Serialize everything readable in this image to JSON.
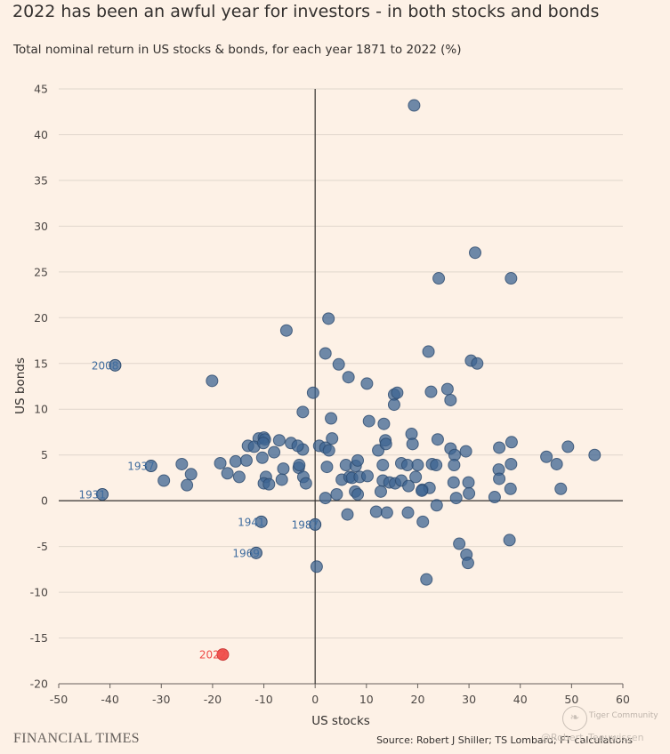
{
  "title": "2022 has been an awful year for investors - in both stocks and bonds",
  "subtitle": "Total nominal return in US stocks & bonds, for each year 1871 to 2022 (%)",
  "brand": "FINANCIAL TIMES",
  "source": "Source: Robert J Shiller; TS Lombard; FT calculations",
  "watermark": {
    "name": "Tiger Community",
    "sub": "@Robert_Teeuwissen"
  },
  "colors": {
    "point": "#3d6491",
    "highlight": "#ef4d4a",
    "label": "#3f6c9e",
    "background": "#fdf1e6",
    "grid": "#e0d6cc"
  },
  "chart_data": {
    "type": "scatter",
    "title": "2022 has been an awful year for investors - in both stocks and bonds",
    "subtitle": "Total nominal return in US stocks & bonds, for each year 1871 to 2022 (%)",
    "xlabel": "US stocks",
    "ylabel": "US bonds",
    "xlim": [
      -50,
      60
    ],
    "ylim": [
      -20,
      45
    ],
    "xticks": [
      -50,
      -40,
      -30,
      -20,
      -10,
      0,
      10,
      20,
      30,
      40,
      50,
      60
    ],
    "yticks": [
      -20,
      -15,
      -10,
      -5,
      0,
      5,
      10,
      15,
      20,
      25,
      30,
      35,
      40,
      45
    ],
    "grid": "horizontal",
    "labeled_points": [
      {
        "label": "2008",
        "x": -39,
        "y": 14.8
      },
      {
        "label": "1937",
        "x": -32,
        "y": 3.8
      },
      {
        "label": "1931",
        "x": -41.5,
        "y": 0.7
      },
      {
        "label": "1941",
        "x": -10.5,
        "y": -2.3
      },
      {
        "label": "1987",
        "x": 0,
        "y": -2.6
      },
      {
        "label": "1969",
        "x": -11.5,
        "y": -5.7
      },
      {
        "label": "2022",
        "x": -18,
        "y": -16.8,
        "highlight": true
      }
    ],
    "points": [
      [
        19.3,
        43.2
      ],
      [
        31.2,
        27.1
      ],
      [
        24.1,
        24.3
      ],
      [
        38.2,
        24.3
      ],
      [
        2.6,
        19.9
      ],
      [
        -5.6,
        18.6
      ],
      [
        22.1,
        16.3
      ],
      [
        2.0,
        16.1
      ],
      [
        4.6,
        14.9
      ],
      [
        30.4,
        15.3
      ],
      [
        31.6,
        15.0
      ],
      [
        6.5,
        13.5
      ],
      [
        -20.1,
        13.1
      ],
      [
        10.1,
        12.8
      ],
      [
        25.8,
        12.2
      ],
      [
        22.6,
        11.9
      ],
      [
        -0.4,
        11.8
      ],
      [
        15.4,
        11.6
      ],
      [
        16.0,
        11.8
      ],
      [
        26.4,
        11.0
      ],
      [
        15.4,
        10.5
      ],
      [
        -2.4,
        9.7
      ],
      [
        3.1,
        9.0
      ],
      [
        10.5,
        8.7
      ],
      [
        13.4,
        8.4
      ],
      [
        18.8,
        7.3
      ],
      [
        -11.0,
        6.8
      ],
      [
        -10.0,
        6.9
      ],
      [
        -9.8,
        6.7
      ],
      [
        -7.0,
        6.6
      ],
      [
        -4.7,
        6.3
      ],
      [
        0.8,
        6.0
      ],
      [
        3.3,
        6.8
      ],
      [
        13.7,
        6.6
      ],
      [
        19.0,
        6.2
      ],
      [
        23.9,
        6.7
      ],
      [
        38.3,
        6.4
      ],
      [
        -13.1,
        6.0
      ],
      [
        -11.9,
        5.9
      ],
      [
        -10.1,
        6.3
      ],
      [
        -8.0,
        5.3
      ],
      [
        -2.4,
        5.6
      ],
      [
        -3.4,
        6.0
      ],
      [
        2.0,
        5.8
      ],
      [
        2.7,
        5.5
      ],
      [
        12.3,
        5.5
      ],
      [
        13.8,
        6.2
      ],
      [
        26.4,
        5.7
      ],
      [
        27.2,
        5.0
      ],
      [
        29.4,
        5.4
      ],
      [
        35.9,
        5.8
      ],
      [
        45.1,
        4.8
      ],
      [
        49.3,
        5.9
      ],
      [
        54.5,
        5.0
      ],
      [
        47.1,
        4.0
      ],
      [
        -26.0,
        4.0
      ],
      [
        -18.5,
        4.1
      ],
      [
        -15.5,
        4.3
      ],
      [
        -13.4,
        4.4
      ],
      [
        -10.3,
        4.7
      ],
      [
        -6.2,
        3.5
      ],
      [
        -3.2,
        3.6
      ],
      [
        -3.1,
        3.9
      ],
      [
        2.3,
        3.7
      ],
      [
        6.0,
        3.9
      ],
      [
        7.9,
        3.8
      ],
      [
        8.3,
        4.4
      ],
      [
        13.2,
        3.9
      ],
      [
        16.8,
        4.1
      ],
      [
        18.0,
        3.9
      ],
      [
        20.0,
        3.9
      ],
      [
        22.8,
        4.0
      ],
      [
        23.6,
        3.9
      ],
      [
        27.1,
        3.9
      ],
      [
        35.8,
        3.4
      ],
      [
        38.2,
        4.0
      ],
      [
        -24.2,
        2.9
      ],
      [
        -17.1,
        3.0
      ],
      [
        -14.8,
        2.6
      ],
      [
        -9.6,
        2.6
      ],
      [
        -6.5,
        2.3
      ],
      [
        -2.3,
        2.6
      ],
      [
        -1.8,
        1.9
      ],
      [
        4.2,
        0.7
      ],
      [
        5.2,
        2.3
      ],
      [
        6.7,
        2.6
      ],
      [
        7.2,
        2.5
      ],
      [
        8.7,
        2.6
      ],
      [
        10.2,
        2.7
      ],
      [
        13.2,
        2.2
      ],
      [
        14.5,
        2.0
      ],
      [
        15.6,
        1.9
      ],
      [
        16.8,
        2.2
      ],
      [
        18.2,
        1.6
      ],
      [
        19.6,
        2.6
      ],
      [
        20.9,
        1.2
      ],
      [
        22.3,
        1.4
      ],
      [
        27.0,
        2.0
      ],
      [
        29.9,
        2.0
      ],
      [
        30.0,
        0.8
      ],
      [
        35.9,
        2.4
      ],
      [
        38.1,
        1.3
      ],
      [
        47.9,
        1.3
      ],
      [
        -29.5,
        2.2
      ],
      [
        -25.0,
        1.7
      ],
      [
        -10.0,
        1.9
      ],
      [
        -9.0,
        1.8
      ],
      [
        2.0,
        0.3
      ],
      [
        7.8,
        1.0
      ],
      [
        8.3,
        0.7
      ],
      [
        12.8,
        1.0
      ],
      [
        20.8,
        1.1
      ],
      [
        27.5,
        0.3
      ],
      [
        35.0,
        0.4
      ],
      [
        6.3,
        -1.5
      ],
      [
        11.9,
        -1.2
      ],
      [
        14.0,
        -1.3
      ],
      [
        18.1,
        -1.3
      ],
      [
        21.0,
        -2.3
      ],
      [
        23.7,
        -0.5
      ],
      [
        0.3,
        -7.2
      ],
      [
        21.7,
        -8.6
      ],
      [
        28.1,
        -4.7
      ],
      [
        29.5,
        -5.9
      ],
      [
        29.8,
        -6.8
      ],
      [
        37.9,
        -4.3
      ]
    ]
  }
}
